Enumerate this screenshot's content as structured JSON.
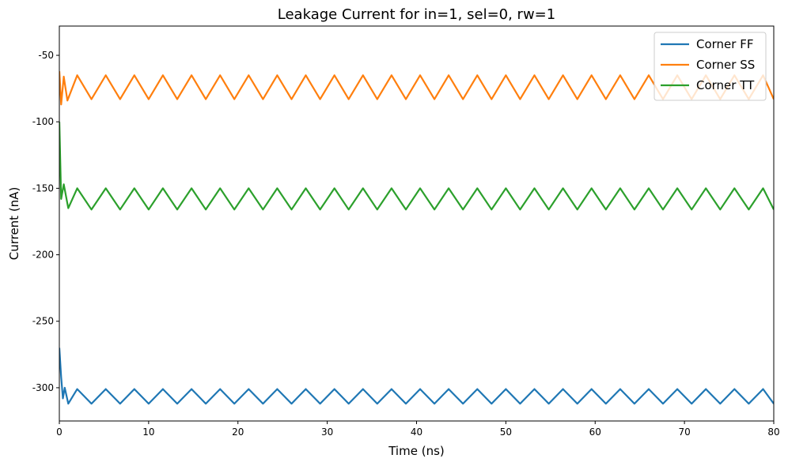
{
  "chart_data": {
    "type": "line",
    "title": "Leakage Current for in=1, sel=0, rw=1",
    "xlabel": "Time (ns)",
    "ylabel": "Current (nA)",
    "xlim": [
      0,
      80
    ],
    "ylim": [
      -325,
      -28
    ],
    "xticks": [
      0,
      10,
      20,
      30,
      40,
      50,
      60,
      70,
      80
    ],
    "yticks": [
      -300,
      -250,
      -200,
      -150,
      -100,
      -50
    ],
    "grid": false,
    "legend": "top-right",
    "series": [
      {
        "name": "Corner FF",
        "color": "#1f77b4",
        "x": [
          0,
          0.2,
          0.4,
          0.6,
          1.0,
          2.0,
          3.6,
          5.2,
          6.8,
          8.4,
          10.0,
          11.6,
          13.2,
          14.8,
          16.4,
          18.0,
          19.6,
          21.2,
          22.8,
          24.4,
          26.0,
          27.6,
          29.2,
          30.8,
          32.4,
          34.0,
          35.6,
          37.2,
          38.8,
          40.4,
          42.0,
          43.6,
          45.2,
          46.8,
          48.4,
          50.0,
          51.6,
          53.2,
          54.8,
          56.4,
          58.0,
          59.6,
          61.2,
          62.8,
          64.4,
          66.0,
          67.6,
          69.2,
          70.8,
          72.4,
          74.0,
          75.6,
          77.2,
          78.8,
          80.0
        ],
        "y": [
          -270,
          -292,
          -308,
          -300,
          -312,
          -301,
          -312,
          -301,
          -312,
          -301,
          -312,
          -301,
          -312,
          -301,
          -312,
          -301,
          -312,
          -301,
          -312,
          -301,
          -312,
          -301,
          -312,
          -301,
          -312,
          -301,
          -312,
          -301,
          -312,
          -301,
          -312,
          -301,
          -312,
          -301,
          -312,
          -301,
          -312,
          -301,
          -312,
          -301,
          -312,
          -301,
          -312,
          -301,
          -312,
          -301,
          -312,
          -301,
          -312,
          -301,
          -312,
          -301,
          -312,
          -301,
          -312
        ]
      },
      {
        "name": "Corner SS",
        "color": "#ff7f0e",
        "x": [
          0,
          0.2,
          0.5,
          0.9,
          2.0,
          3.6,
          5.2,
          6.8,
          8.4,
          10.0,
          11.6,
          13.2,
          14.8,
          16.4,
          18.0,
          19.6,
          21.2,
          22.8,
          24.4,
          26.0,
          27.6,
          29.2,
          30.8,
          32.4,
          34.0,
          35.6,
          37.2,
          38.8,
          40.4,
          42.0,
          43.6,
          45.2,
          46.8,
          48.4,
          50.0,
          51.6,
          53.2,
          54.8,
          56.4,
          58.0,
          59.6,
          61.2,
          62.8,
          64.4,
          66.0,
          67.6,
          69.2,
          70.8,
          72.4,
          74.0,
          75.6,
          77.2,
          78.8,
          80.0
        ],
        "y": [
          -62,
          -87,
          -66,
          -84,
          -65,
          -83,
          -65,
          -83,
          -65,
          -83,
          -65,
          -83,
          -65,
          -83,
          -65,
          -83,
          -65,
          -83,
          -65,
          -83,
          -65,
          -83,
          -65,
          -83,
          -65,
          -83,
          -65,
          -83,
          -65,
          -83,
          -65,
          -83,
          -65,
          -83,
          -65,
          -83,
          -65,
          -83,
          -65,
          -83,
          -65,
          -83,
          -65,
          -83,
          -65,
          -83,
          -65,
          -83,
          -65,
          -83,
          -65,
          -83,
          -65,
          -83
        ]
      },
      {
        "name": "Corner TT",
        "color": "#2ca02c",
        "x": [
          0,
          0.2,
          0.5,
          1.0,
          2.0,
          3.6,
          5.2,
          6.8,
          8.4,
          10.0,
          11.6,
          13.2,
          14.8,
          16.4,
          18.0,
          19.6,
          21.2,
          22.8,
          24.4,
          26.0,
          27.6,
          29.2,
          30.8,
          32.4,
          34.0,
          35.6,
          37.2,
          38.8,
          40.4,
          42.0,
          43.6,
          45.2,
          46.8,
          48.4,
          50.0,
          51.6,
          53.2,
          54.8,
          56.4,
          58.0,
          59.6,
          61.2,
          62.8,
          64.4,
          66.0,
          67.6,
          69.2,
          70.8,
          72.4,
          74.0,
          75.6,
          77.2,
          78.8,
          80.0
        ],
        "y": [
          -100,
          -158,
          -147,
          -165,
          -150,
          -166,
          -150,
          -166,
          -150,
          -166,
          -150,
          -166,
          -150,
          -166,
          -150,
          -166,
          -150,
          -166,
          -150,
          -166,
          -150,
          -166,
          -150,
          -166,
          -150,
          -166,
          -150,
          -166,
          -150,
          -166,
          -150,
          -166,
          -150,
          -166,
          -150,
          -166,
          -150,
          -166,
          -150,
          -166,
          -150,
          -166,
          -150,
          -166,
          -150,
          -166,
          -150,
          -166,
          -150,
          -166,
          -150,
          -166,
          -150,
          -166
        ]
      }
    ]
  }
}
